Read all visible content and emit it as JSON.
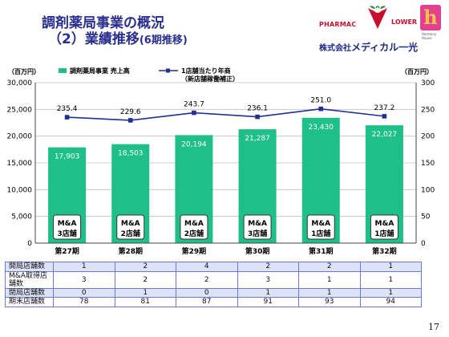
{
  "header": {
    "title_line1": "調剤薬局事業の概況",
    "title_line2": "（2）業績推移",
    "title_line2_suffix": "(6期推移)"
  },
  "logo": {
    "pharmac": "PHARMAC",
    "lower": "LOWER",
    "harmony": "Harmony House",
    "company_prefix": "株式会社",
    "company_name": "メディカル一光"
  },
  "page_number": "17",
  "colors": {
    "bar": "#1fbf8a",
    "line": "#1f2f95",
    "title": "#2a2f8f",
    "table_border": "#6a7bd0",
    "table_shade": "#dde3f6"
  },
  "chart_data": {
    "type": "bar",
    "categories": [
      "第27期",
      "第28期",
      "第29期",
      "第30期",
      "第31期",
      "第32期"
    ],
    "left_unit": "（百万円）",
    "right_unit": "（百万円）",
    "ylim": [
      0,
      30000
    ],
    "y2lim": [
      0,
      300
    ],
    "y_ticks": [
      "0",
      "5,000",
      "10,000",
      "15,000",
      "20,000",
      "25,000",
      "30,000"
    ],
    "y2_ticks": [
      "0",
      "50",
      "100",
      "150",
      "200",
      "250",
      "300"
    ],
    "grid": true,
    "series": [
      {
        "name": "調剤薬局事業 売上高",
        "kind": "bar",
        "values": [
          17903,
          18503,
          20194,
          21287,
          23430,
          22027
        ],
        "labels": [
          "17,903",
          "18,503",
          "20,194",
          "21,287",
          "23,430",
          "22,027"
        ]
      },
      {
        "name": "1店舗当たり年商",
        "name_note": "（新店舗稼働補正）",
        "kind": "line",
        "axis": "right",
        "values": [
          235.4,
          229.6,
          243.7,
          236.1,
          251.0,
          237.2
        ],
        "labels": [
          "235.4",
          "229.6",
          "243.7",
          "236.1",
          "251.0",
          "237.2"
        ]
      }
    ],
    "annotations": [
      [
        "M&A",
        "3店舗"
      ],
      [
        "M&A",
        "2店舗"
      ],
      [
        "M&A",
        "2店舗"
      ],
      [
        "M&A",
        "3店舗"
      ],
      [
        "M&A",
        "1店舗"
      ],
      [
        "M&A",
        "1店舗"
      ]
    ]
  },
  "table": {
    "rows": [
      {
        "label": "開局店舗数",
        "values": [
          "1",
          "2",
          "4",
          "2",
          "2",
          "1"
        ]
      },
      {
        "label": "M&A取得店舗数",
        "values": [
          "3",
          "2",
          "2",
          "3",
          "1",
          "1"
        ]
      },
      {
        "label": "閉局店舗数",
        "values": [
          "0",
          "1",
          "0",
          "1",
          "1",
          "1"
        ]
      },
      {
        "label": "期末店舗数",
        "values": [
          "78",
          "81",
          "87",
          "91",
          "93",
          "94"
        ]
      }
    ]
  }
}
